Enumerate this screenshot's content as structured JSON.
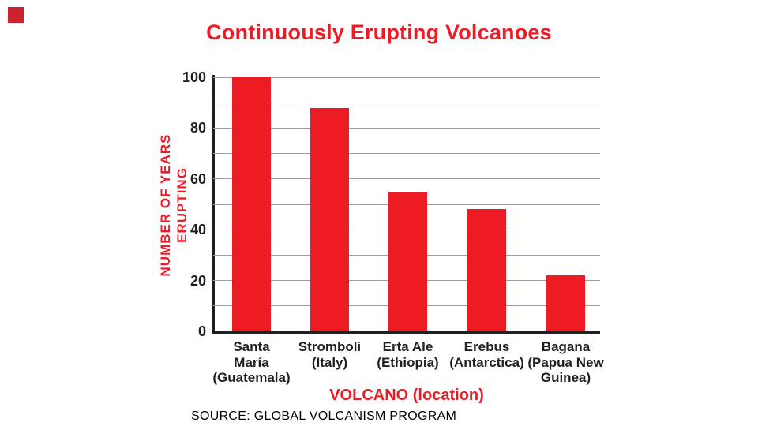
{
  "accent_color": "#ed1c24",
  "marker": {
    "color": "#c9232d"
  },
  "chart_data": {
    "type": "bar",
    "title": "Continuously Erupting Volcanoes",
    "categories": [
      "Santa María (Guatemala)",
      "Stromboli (Italy)",
      "Erta Ale (Ethiopia)",
      "Erebus (Antarctica)",
      "Bagana (Papua New Guinea)"
    ],
    "category_lines": [
      [
        "Santa",
        "María",
        "(Guatemala)"
      ],
      [
        "Stromboli",
        "(Italy)"
      ],
      [
        "Erta Ale",
        "(Ethiopia)"
      ],
      [
        "Erebus",
        "(Antarctica)"
      ],
      [
        "Bagana",
        "(Papua New",
        "Guinea)"
      ]
    ],
    "values": [
      100,
      88,
      55,
      48,
      22
    ],
    "xlabel": "VOLCANO (location)",
    "ylabel": "NUMBER OF YEARS ERUPTING",
    "ylabel_lines": [
      "NUMBER OF YEARS",
      "ERUPTING"
    ],
    "yticks": [
      0,
      20,
      40,
      60,
      80,
      100
    ],
    "ylim": [
      0,
      100
    ],
    "gridline_step": 10,
    "grid": true,
    "legend": false,
    "bar_color": "#ed1c24",
    "grid_color": "#9c9ea0",
    "axis_color": "#231f20",
    "tick_label_color": "#231f20"
  },
  "source_note": "SOURCE: GLOBAL VOLCANISM PROGRAM"
}
